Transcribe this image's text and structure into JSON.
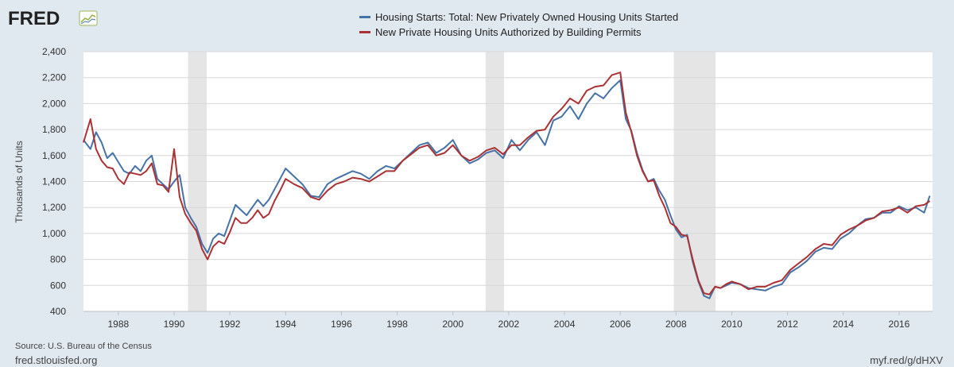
{
  "header": {
    "logo_text": "FRED",
    "colors": {
      "logo": "#222222",
      "logo_icon": "#9eb44f"
    }
  },
  "footer": {
    "source": "Source: U.S. Bureau of the Census",
    "site": "fred.stlouisfed.org",
    "shortlink": "myf.red/g/dHXV"
  },
  "chart_data": {
    "type": "line",
    "title": "",
    "xlabel": "",
    "ylabel": "Thousands of Units",
    "xlim": [
      1986.75,
      2017.2
    ],
    "ylim": [
      400,
      2400
    ],
    "yticks": [
      400,
      600,
      800,
      1000,
      1200,
      1400,
      1600,
      1800,
      2000,
      2200,
      2400
    ],
    "ytick_labels": [
      "400",
      "600",
      "800",
      "1,000",
      "1,200",
      "1,400",
      "1,600",
      "1,800",
      "2,000",
      "2,200",
      "2,400"
    ],
    "xticks": [
      1988,
      1990,
      1992,
      1994,
      1996,
      1998,
      2000,
      2002,
      2004,
      2006,
      2008,
      2010,
      2012,
      2014,
      2016
    ],
    "xtick_labels": [
      "1988",
      "1990",
      "1992",
      "1994",
      "1996",
      "1998",
      "2000",
      "2002",
      "2004",
      "2006",
      "2008",
      "2010",
      "2012",
      "2014",
      "2016"
    ],
    "grid": "horizontal",
    "legend_position": "top-center",
    "recessions": [
      [
        1990.5,
        1991.17
      ],
      [
        2001.17,
        2001.83
      ],
      [
        2007.92,
        2009.42
      ]
    ],
    "series": [
      {
        "name": "Housing Starts: Total: New Privately Owned Housing Units Started",
        "color": "#4572a7",
        "x": [
          1986.75,
          1987.0,
          1987.2,
          1987.4,
          1987.6,
          1987.8,
          1988.0,
          1988.2,
          1988.4,
          1988.6,
          1988.8,
          1989.0,
          1989.2,
          1989.4,
          1989.6,
          1989.8,
          1990.0,
          1990.2,
          1990.4,
          1990.6,
          1990.8,
          1991.0,
          1991.2,
          1991.4,
          1991.6,
          1991.8,
          1992.0,
          1992.2,
          1992.4,
          1992.6,
          1992.8,
          1993.0,
          1993.2,
          1993.4,
          1993.6,
          1993.8,
          1994.0,
          1994.3,
          1994.6,
          1994.9,
          1995.2,
          1995.5,
          1995.8,
          1996.1,
          1996.4,
          1996.7,
          1997.0,
          1997.3,
          1997.6,
          1997.9,
          1998.2,
          1998.5,
          1998.8,
          1999.1,
          1999.4,
          1999.7,
          2000.0,
          2000.3,
          2000.6,
          2000.9,
          2001.2,
          2001.5,
          2001.8,
          2002.1,
          2002.4,
          2002.7,
          2003.0,
          2003.3,
          2003.6,
          2003.9,
          2004.2,
          2004.5,
          2004.8,
          2005.1,
          2005.4,
          2005.7,
          2006.0,
          2006.2,
          2006.4,
          2006.6,
          2006.8,
          2007.0,
          2007.2,
          2007.4,
          2007.6,
          2007.8,
          2008.0,
          2008.2,
          2008.4,
          2008.6,
          2008.8,
          2009.0,
          2009.2,
          2009.4,
          2009.6,
          2009.8,
          2010.0,
          2010.3,
          2010.6,
          2010.9,
          2011.2,
          2011.5,
          2011.8,
          2012.1,
          2012.4,
          2012.7,
          2013.0,
          2013.3,
          2013.6,
          2013.9,
          2014.2,
          2014.5,
          2014.8,
          2015.1,
          2015.4,
          2015.7,
          2016.0,
          2016.3,
          2016.6,
          2016.9,
          2017.1
        ],
        "values": [
          1720,
          1650,
          1780,
          1700,
          1580,
          1620,
          1550,
          1480,
          1460,
          1520,
          1480,
          1560,
          1600,
          1420,
          1380,
          1340,
          1400,
          1450,
          1200,
          1120,
          1050,
          920,
          850,
          960,
          1000,
          980,
          1100,
          1220,
          1180,
          1140,
          1200,
          1260,
          1210,
          1260,
          1340,
          1420,
          1500,
          1440,
          1380,
          1290,
          1280,
          1380,
          1420,
          1450,
          1480,
          1460,
          1420,
          1480,
          1520,
          1500,
          1560,
          1620,
          1680,
          1700,
          1620,
          1660,
          1720,
          1600,
          1540,
          1570,
          1620,
          1640,
          1580,
          1720,
          1640,
          1720,
          1780,
          1680,
          1870,
          1900,
          1980,
          1880,
          2000,
          2080,
          2040,
          2120,
          2180,
          1880,
          1790,
          1620,
          1490,
          1400,
          1420,
          1330,
          1260,
          1140,
          1030,
          970,
          990,
          780,
          630,
          520,
          500,
          590,
          580,
          600,
          620,
          610,
          580,
          570,
          560,
          590,
          610,
          700,
          740,
          790,
          860,
          890,
          880,
          960,
          1000,
          1060,
          1110,
          1120,
          1160,
          1160,
          1210,
          1180,
          1200,
          1160,
          1290
        ],
        "raw_values": [
          1720,
          1650,
          1780,
          1700,
          1580,
          1620,
          1550,
          1480,
          1460,
          1520,
          1480,
          1560,
          1600,
          1420,
          1380,
          1340,
          1400,
          1450,
          1200,
          1120,
          1050,
          920,
          850,
          960,
          1000,
          980,
          1100,
          1220,
          1180,
          1140,
          1200,
          1260,
          1210,
          1260,
          1340,
          1420,
          1500,
          1440,
          1380,
          1290,
          1280,
          1380,
          1420,
          1450,
          1480,
          1460,
          1420,
          1480,
          1520,
          1500,
          1560,
          1620,
          1680,
          1700,
          1620,
          1660,
          1720,
          1600,
          1540,
          1570,
          1620,
          1640,
          1580,
          1720,
          1640,
          1720,
          1780,
          1680,
          1870,
          1900,
          1980,
          1880,
          2000,
          2080,
          2040,
          2120,
          2180,
          1880,
          1790,
          1620,
          1490,
          1400,
          1420,
          1330,
          1260,
          1140,
          1030,
          970,
          990,
          780,
          630,
          520,
          500,
          590,
          580,
          600,
          620,
          610,
          580,
          570,
          560,
          590,
          610,
          700,
          740,
          790,
          860,
          890,
          880,
          960,
          1000,
          1060,
          1110,
          1120,
          1160,
          1160,
          1210,
          1180,
          1200,
          1160,
          1290
        ]
      },
      {
        "name": "New Private Housing Units Authorized by Building Permits",
        "color": "#aa3235",
        "x": [
          1986.75,
          1987.0,
          1987.2,
          1987.4,
          1987.6,
          1987.8,
          1988.0,
          1988.2,
          1988.4,
          1988.6,
          1988.8,
          1989.0,
          1989.2,
          1989.4,
          1989.6,
          1989.8,
          1990.0,
          1990.2,
          1990.4,
          1990.6,
          1990.8,
          1991.0,
          1991.2,
          1991.4,
          1991.6,
          1991.8,
          1992.0,
          1992.2,
          1992.4,
          1992.6,
          1992.8,
          1993.0,
          1993.2,
          1993.4,
          1993.6,
          1993.8,
          1994.0,
          1994.3,
          1994.6,
          1994.9,
          1995.2,
          1995.5,
          1995.8,
          1996.1,
          1996.4,
          1996.7,
          1997.0,
          1997.3,
          1997.6,
          1997.9,
          1998.2,
          1998.5,
          1998.8,
          1999.1,
          1999.4,
          1999.7,
          2000.0,
          2000.3,
          2000.6,
          2000.9,
          2001.2,
          2001.5,
          2001.8,
          2002.1,
          2002.4,
          2002.7,
          2003.0,
          2003.3,
          2003.6,
          2003.9,
          2004.2,
          2004.5,
          2004.8,
          2005.1,
          2005.4,
          2005.7,
          2006.0,
          2006.2,
          2006.4,
          2006.6,
          2006.8,
          2007.0,
          2007.2,
          2007.4,
          2007.6,
          2007.8,
          2008.0,
          2008.2,
          2008.4,
          2008.6,
          2008.8,
          2009.0,
          2009.2,
          2009.4,
          2009.6,
          2009.8,
          2010.0,
          2010.3,
          2010.6,
          2010.9,
          2011.2,
          2011.5,
          2011.8,
          2012.1,
          2012.4,
          2012.7,
          2013.0,
          2013.3,
          2013.6,
          2013.9,
          2014.2,
          2014.5,
          2014.8,
          2015.1,
          2015.4,
          2015.7,
          2016.0,
          2016.3,
          2016.6,
          2016.9,
          2017.1
        ],
        "values": [
          1700,
          1880,
          1650,
          1560,
          1510,
          1500,
          1420,
          1380,
          1470,
          1460,
          1450,
          1480,
          1540,
          1380,
          1370,
          1320,
          1650,
          1280,
          1150,
          1080,
          1020,
          880,
          800,
          900,
          940,
          920,
          1010,
          1120,
          1080,
          1080,
          1120,
          1180,
          1120,
          1150,
          1250,
          1330,
          1420,
          1380,
          1350,
          1280,
          1260,
          1330,
          1380,
          1400,
          1430,
          1420,
          1400,
          1440,
          1480,
          1480,
          1560,
          1610,
          1660,
          1680,
          1600,
          1620,
          1680,
          1600,
          1560,
          1590,
          1640,
          1660,
          1610,
          1680,
          1680,
          1740,
          1790,
          1800,
          1900,
          1960,
          2040,
          2000,
          2100,
          2130,
          2140,
          2220,
          2240,
          1930,
          1780,
          1600,
          1480,
          1400,
          1410,
          1290,
          1200,
          1080,
          1050,
          990,
          980,
          800,
          640,
          540,
          530,
          590,
          580,
          610,
          630,
          610,
          570,
          590,
          590,
          620,
          640,
          720,
          770,
          820,
          880,
          920,
          910,
          990,
          1030,
          1060,
          1100,
          1120,
          1170,
          1180,
          1200,
          1160,
          1210,
          1220,
          1250
        ],
        "raw_values": [
          1700,
          1880,
          1650,
          1560,
          1510,
          1500,
          1420,
          1380,
          1470,
          1460,
          1450,
          1480,
          1540,
          1380,
          1370,
          1320,
          1650,
          1280,
          1150,
          1080,
          1020,
          880,
          800,
          900,
          940,
          920,
          1010,
          1120,
          1080,
          1080,
          1120,
          1180,
          1120,
          1150,
          1250,
          1330,
          1420,
          1380,
          1350,
          1280,
          1260,
          1330,
          1380,
          1400,
          1430,
          1420,
          1400,
          1440,
          1480,
          1480,
          1560,
          1610,
          1660,
          1680,
          1600,
          1620,
          1680,
          1600,
          1560,
          1590,
          1640,
          1660,
          1610,
          1680,
          1680,
          1740,
          1790,
          1800,
          1900,
          1960,
          2040,
          2000,
          2100,
          2130,
          2140,
          2220,
          2240,
          1930,
          1780,
          1600,
          1480,
          1400,
          1410,
          1290,
          1200,
          1080,
          1050,
          990,
          980,
          800,
          640,
          540,
          530,
          590,
          580,
          610,
          630,
          610,
          570,
          590,
          590,
          620,
          640,
          720,
          770,
          820,
          880,
          920,
          910,
          990,
          1030,
          1060,
          1100,
          1120,
          1170,
          1180,
          1200,
          1160,
          1210,
          1220,
          1250
        ]
      }
    ]
  }
}
